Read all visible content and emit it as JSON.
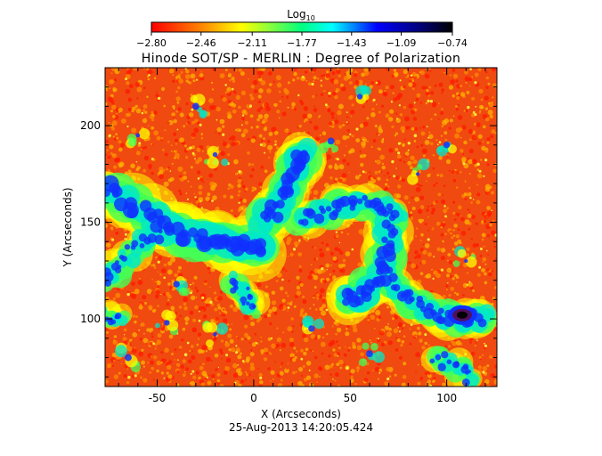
{
  "chart_data": {
    "type": "heatmap",
    "title": "Hinode SOT/SP - MERLIN : Degree of Polarization",
    "subtitle": "25-Aug-2013 14:20:05.424",
    "xlabel": "X (Arcseconds)",
    "ylabel": "Y (Arcseconds)",
    "xlim": [
      -77,
      126
    ],
    "ylim": [
      65,
      230
    ],
    "x_ticks": [
      -50,
      0,
      50,
      100
    ],
    "y_ticks": [
      100,
      150,
      200
    ],
    "x_tick_labels": [
      "-50",
      "0",
      "50",
      "100"
    ],
    "y_tick_labels": [
      "100",
      "150",
      "200"
    ],
    "colorbar": {
      "label": "Log",
      "label_subscript": "10",
      "range": [
        -2.8,
        -0.74
      ],
      "ticks": [
        -2.8,
        -2.46,
        -2.11,
        -1.77,
        -1.43,
        -1.09,
        -0.74
      ],
      "tick_labels": [
        "−2.80",
        "−2.46",
        "−2.11",
        "−1.77",
        "−1.43",
        "−1.09",
        "−0.74"
      ],
      "colors": [
        "#ff0000",
        "#ff8000",
        "#ffff00",
        "#00ff80",
        "#00ffff",
        "#0000ff",
        "#000060",
        "#000000"
      ]
    },
    "map_colors": {
      "background": "#f04a10",
      "speckle": [
        "#ff1a00",
        "#ff8c00",
        "#ffb400"
      ],
      "field_levels": [
        "#ffff00",
        "#44ff55",
        "#00e8c8",
        "#1030ff",
        "#2000c0"
      ],
      "core": [
        "#501060",
        "#000000"
      ]
    }
  }
}
